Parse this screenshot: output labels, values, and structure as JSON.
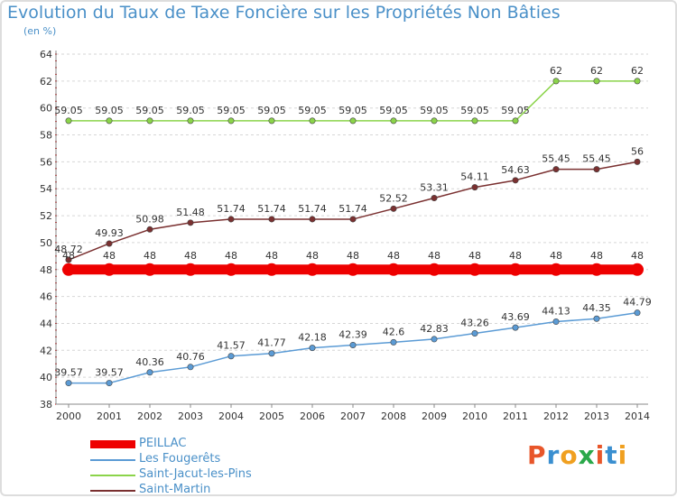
{
  "header": {
    "title": "Evolution du Taux de Taxe Foncière sur les Propriétés Non Bâties",
    "subtitle": "(en %)"
  },
  "logo": {
    "text": "Proxiti",
    "letter_colors": [
      "#e8562a",
      "#3a8fd0",
      "#f0a020",
      "#2aa84a",
      "#e8562a",
      "#3a8fd0",
      "#f0a020"
    ]
  },
  "chart_data": {
    "type": "line",
    "title": "Evolution du Taux de Taxe Foncière sur les Propriétés Non Bâties",
    "ylabel": "(en %)",
    "xlabel": "",
    "ylim": [
      38,
      64
    ],
    "yticks": [
      38,
      40,
      42,
      44,
      46,
      48,
      50,
      52,
      54,
      56,
      58,
      60,
      62,
      64
    ],
    "categories": [
      "2000",
      "2001",
      "2002",
      "2003",
      "2004",
      "2005",
      "2006",
      "2007",
      "2008",
      "2009",
      "2010",
      "2011",
      "2012",
      "2013",
      "2014"
    ],
    "grid": "horizontal dashed",
    "legend_position": "bottom-left",
    "series": [
      {
        "name": "PEILLAC",
        "color": "#ee0000",
        "values": [
          48,
          48,
          48,
          48,
          48,
          48,
          48,
          48,
          48,
          48,
          48,
          48,
          48,
          48,
          48
        ],
        "labels": [
          "48",
          "48",
          "48",
          "48",
          "48",
          "48",
          "48",
          "48",
          "48",
          "48",
          "48",
          "48",
          "48",
          "48",
          "48"
        ]
      },
      {
        "name": "Les Fougerêts",
        "color": "#5b9bd5",
        "values": [
          39.57,
          39.57,
          40.36,
          40.76,
          41.57,
          41.77,
          42.18,
          42.39,
          42.6,
          42.83,
          43.26,
          43.69,
          44.13,
          44.35,
          44.79
        ],
        "labels": [
          "39.57",
          "39.57",
          "40.36",
          "40.76",
          "41.57",
          "41.77",
          "42.18",
          "42.39",
          "42.6",
          "42.83",
          "43.26",
          "43.69",
          "44.13",
          "44.35",
          "44.79"
        ]
      },
      {
        "name": "Saint-Jacut-les-Pins",
        "color": "#8bd44a",
        "values": [
          59.05,
          59.05,
          59.05,
          59.05,
          59.05,
          59.05,
          59.05,
          59.05,
          59.05,
          59.05,
          59.05,
          59.05,
          62,
          62,
          62
        ],
        "labels": [
          "59.05",
          "59.05",
          "59.05",
          "59.05",
          "59.05",
          "59.05",
          "59.05",
          "59.05",
          "59.05",
          "59.05",
          "59.05",
          "59.05",
          "62",
          "62",
          "62"
        ]
      },
      {
        "name": "Saint-Martin",
        "color": "#7a3030",
        "values": [
          48.72,
          49.93,
          50.98,
          51.48,
          51.74,
          51.74,
          51.74,
          51.74,
          52.52,
          53.31,
          54.11,
          54.63,
          55.45,
          55.45,
          56
        ],
        "labels": [
          "48.72",
          "49.93",
          "50.98",
          "51.48",
          "51.74",
          "51.74",
          "51.74",
          "51.74",
          "52.52",
          "53.31",
          "54.11",
          "54.63",
          "55.45",
          "55.45",
          "56"
        ]
      }
    ]
  }
}
